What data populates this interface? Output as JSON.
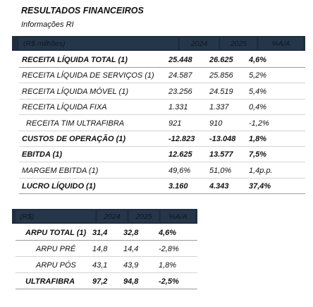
{
  "title": "RESULTADOS FINANCEIROS",
  "subtitle": "Informações RI",
  "table1": {
    "headers": [
      "(R$ milhões)",
      "2024",
      "2025",
      "%A/A"
    ],
    "rows": [
      {
        "label": "RECEITA LÍQUIDA TOTAL (1)",
        "v2024": "25.448",
        "v2025": "26.625",
        "pct": "4,6%",
        "bold": true
      },
      {
        "label": "RECEITA LÍQUIDA DE SERVIÇOS (1)",
        "v2024": "24.587",
        "v2025": "25.856",
        "pct": "5,2%",
        "bold": false
      },
      {
        "label": "RECEITA LÍQUIDA MÓVEL (1)",
        "v2024": "23.256",
        "v2025": "24.519",
        "pct": "5,4%",
        "bold": false
      },
      {
        "label": "RECEITA LÍQUIDA FIXA",
        "v2024": "1.331",
        "v2025": "1.337",
        "pct": "0,4%",
        "bold": false
      },
      {
        "label": "RECEITA TIM ULTRAFIBRA",
        "v2024": "921",
        "v2025": "910",
        "pct": "-1,2%",
        "bold": false
      },
      {
        "label": "CUSTOS DE OPERAÇÃO (1)",
        "v2024": "-12.823",
        "v2025": "-13.048",
        "pct": "1,8%",
        "bold": true
      },
      {
        "label": "EBITDA (1)",
        "v2024": "12.625",
        "v2025": "13.577",
        "pct": "7,5%",
        "bold": true
      },
      {
        "label": "MARGEM EBITDA (1)",
        "v2024": "49,6%",
        "v2025": "51,0%",
        "pct": "1,4p.p.",
        "bold": false
      },
      {
        "label": "LUCRO LÍQUIDO (1)",
        "v2024": "3.160",
        "v2025": "4.343",
        "pct": "37,4%",
        "bold": true
      }
    ]
  },
  "table2": {
    "headers": [
      "(R$)",
      "2024",
      "2025",
      "%A/A"
    ],
    "rows": [
      {
        "label": "ARPU TOTAL (1)",
        "v2024": "31,4",
        "v2025": "32,8",
        "pct": "4,6%",
        "bold": true
      },
      {
        "label": "ARPU PRÉ",
        "v2024": "14,8",
        "v2025": "14,4",
        "pct": "-2,8%",
        "bold": false
      },
      {
        "label": "ARPU PÓS",
        "v2024": "43,1",
        "v2025": "43,9",
        "pct": "1,8%",
        "bold": false
      },
      {
        "label": "ULTRAFIBRA",
        "v2024": "97,2",
        "v2025": "94,8",
        "pct": "-2,5%",
        "bold": true
      }
    ]
  }
}
